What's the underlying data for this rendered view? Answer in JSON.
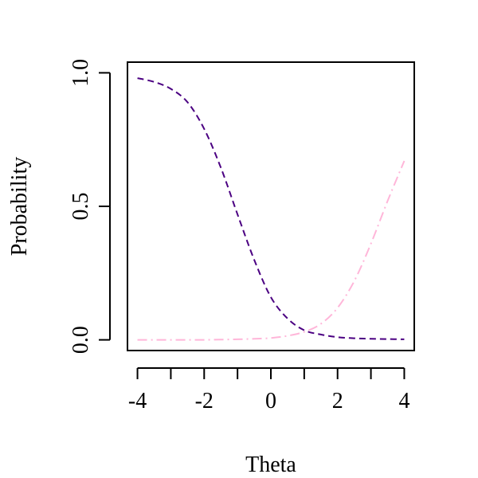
{
  "chart_data": {
    "type": "line",
    "title": "",
    "xlabel": "Theta",
    "ylabel": "Probability",
    "xlim": [
      -4.3,
      4.3
    ],
    "ylim": [
      -0.04,
      1.04
    ],
    "xticks": [
      -4,
      -3,
      -2,
      -1,
      0,
      1,
      2,
      3,
      4
    ],
    "xtick_labels": [
      "-4",
      "",
      "-2",
      "",
      "0",
      "",
      "2",
      "",
      "4"
    ],
    "yticks": [
      0.0,
      0.5,
      1.0
    ],
    "ytick_labels": [
      "0.0",
      "0.5",
      "1.0"
    ],
    "grid": false,
    "legend": "none",
    "series": [
      {
        "color": "#4B0082",
        "dash": "dashed",
        "x": [
          -4,
          -3.5,
          -3,
          -2.5,
          -2,
          -1.5,
          -1,
          -0.5,
          0,
          0.5,
          1,
          1.5,
          2,
          2.5,
          3,
          3.5,
          4
        ],
        "y": [
          0.98,
          0.966,
          0.94,
          0.89,
          0.79,
          0.645,
          0.47,
          0.3,
          0.16,
          0.08,
          0.036,
          0.02,
          0.01,
          0.006,
          0.004,
          0.003,
          0.002
        ]
      },
      {
        "color": "#FFB6D9",
        "dash": "dashdot",
        "x": [
          -4,
          -3.5,
          -3,
          -2.5,
          -2,
          -1.5,
          -1,
          -0.5,
          0,
          0.5,
          1,
          1.5,
          2,
          2.5,
          3,
          3.5,
          4
        ],
        "y": [
          0.0,
          0.0,
          0.0,
          0.0,
          0.0,
          0.001,
          0.002,
          0.004,
          0.007,
          0.015,
          0.03,
          0.06,
          0.12,
          0.22,
          0.36,
          0.52,
          0.67
        ]
      }
    ]
  }
}
